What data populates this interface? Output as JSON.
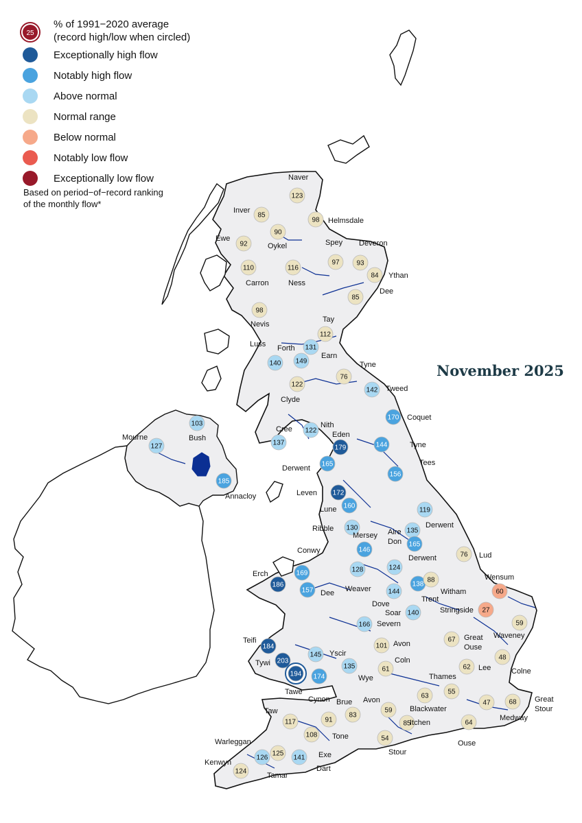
{
  "title": "November 2025",
  "legend": {
    "circled_header_line1": "% of 1991−2020 average",
    "circled_header_line2": "(record high/low when circled)",
    "sample_value": "25",
    "categories": [
      {
        "label": "Exceptionally high flow",
        "color": "#1f5a99"
      },
      {
        "label": "Notably high flow",
        "color": "#4aa3df"
      },
      {
        "label": "Above normal",
        "color": "#a9d8f2"
      },
      {
        "label": "Normal range",
        "color": "#ece3c2"
      },
      {
        "label": "Below normal",
        "color": "#f6a98a"
      },
      {
        "label": "Notably low flow",
        "color": "#ea5b50"
      },
      {
        "label": "Exceptionally low flow",
        "color": "#98192a"
      }
    ],
    "note_line1": "Based on period−of−record ranking",
    "note_line2": "of the monthly flow*"
  },
  "stations": [
    {
      "name": "Naver",
      "value": "123",
      "category": 3
    },
    {
      "name": "Inver",
      "value": "85",
      "category": 3
    },
    {
      "name": "Helmsdale",
      "value": "98",
      "category": 3
    },
    {
      "name": "Oykel",
      "value": "90",
      "category": 3
    },
    {
      "name": "Ewe",
      "value": "92",
      "category": 3
    },
    {
      "name": "Spey",
      "value": "97",
      "category": 3
    },
    {
      "name": "Deveron",
      "value": "93",
      "category": 3
    },
    {
      "name": "Carron",
      "value": "110",
      "category": 3
    },
    {
      "name": "Ness",
      "value": "116",
      "category": 3
    },
    {
      "name": "Ythan",
      "value": "84",
      "category": 3
    },
    {
      "name": "Dee",
      "value": "85",
      "category": 3
    },
    {
      "name": "Nevis",
      "value": "98",
      "category": 3
    },
    {
      "name": "Tay",
      "value": "112",
      "category": 3
    },
    {
      "name": "Forth",
      "value": "131",
      "category": 2
    },
    {
      "name": "Earn",
      "value": "149",
      "category": 2
    },
    {
      "name": "Luss",
      "value": "140",
      "category": 2
    },
    {
      "name": "Tyne",
      "value": "76",
      "category": 3
    },
    {
      "name": "Tweed",
      "value": "142",
      "category": 2
    },
    {
      "name": "Clyde",
      "value": "122",
      "category": 3
    },
    {
      "name": "Coquet",
      "value": "170",
      "category": 1
    },
    {
      "name": "Bush",
      "value": "103",
      "category": 2
    },
    {
      "name": "Mourne",
      "value": "127",
      "category": 2
    },
    {
      "name": "Cree",
      "value": "137",
      "category": 2
    },
    {
      "name": "Nith",
      "value": "122",
      "category": 2
    },
    {
      "name": "Eden",
      "value": "179",
      "category": 0
    },
    {
      "name": "Tyne",
      "value": "144",
      "category": 1
    },
    {
      "name": "Derwent",
      "value": "165",
      "category": 1
    },
    {
      "name": "Tees",
      "value": "156",
      "category": 1
    },
    {
      "name": "Annacloy",
      "value": "185",
      "category": 1
    },
    {
      "name": "Leven",
      "value": "172",
      "category": 0
    },
    {
      "name": "Lune",
      "value": "160",
      "category": 1
    },
    {
      "name": "Derwent",
      "value": "119",
      "category": 2
    },
    {
      "name": "Ribble",
      "value": "130",
      "category": 2
    },
    {
      "name": "Aire",
      "value": "135",
      "category": 2
    },
    {
      "name": "Don",
      "value": "165",
      "category": 1
    },
    {
      "name": "Lud",
      "value": "76",
      "category": 3
    },
    {
      "name": "Mersey",
      "value": "146",
      "category": 1
    },
    {
      "name": "Conwy",
      "value": "169",
      "category": 1
    },
    {
      "name": "Weaver",
      "value": "128",
      "category": 2
    },
    {
      "name": "Derwent",
      "value": "124",
      "category": 2
    },
    {
      "name": "Wensum",
      "value": "60",
      "category": 4
    },
    {
      "name": "Erch",
      "value": "186",
      "category": 0
    },
    {
      "name": "Dee",
      "value": "157",
      "category": 1
    },
    {
      "name": "Trent",
      "value": "138",
      "category": 1
    },
    {
      "name": "Witham",
      "value": "88",
      "category": 3
    },
    {
      "name": "Dove",
      "value": "144",
      "category": 2
    },
    {
      "name": "Soar",
      "value": "140",
      "category": 2
    },
    {
      "name": "Stringside",
      "value": "27",
      "category": 4
    },
    {
      "name": "Severn",
      "value": "166",
      "category": 2
    },
    {
      "name": "Waveney",
      "value": "59",
      "category": 3
    },
    {
      "name": "Teifi",
      "value": "184",
      "category": 0
    },
    {
      "name": "Avon",
      "value": "101",
      "category": 3
    },
    {
      "name": "Great Ouse",
      "value": "67",
      "category": 3
    },
    {
      "name": "Yscir",
      "value": "145",
      "category": 2
    },
    {
      "name": "Tywi",
      "value": "203",
      "category": 0
    },
    {
      "name": "Wye",
      "value": "135",
      "category": 2
    },
    {
      "name": "Coln",
      "value": "61",
      "category": 3
    },
    {
      "name": "Lee",
      "value": "62",
      "category": 3
    },
    {
      "name": "Colne",
      "value": "48",
      "category": 3
    },
    {
      "name": "Tawe",
      "value": "194",
      "category": 0,
      "record": true
    },
    {
      "name": "Cynon",
      "value": "174",
      "category": 1
    },
    {
      "name": "Thames",
      "value": "55",
      "category": 3
    },
    {
      "name": "Great Stour",
      "value": "68",
      "category": 3
    },
    {
      "name": "Medway",
      "value": "47",
      "category": 3
    },
    {
      "name": "Blackwater",
      "value": "63",
      "category": 3
    },
    {
      "name": "Avon",
      "value": "59",
      "category": 3
    },
    {
      "name": "Brue",
      "value": "83",
      "category": 3
    },
    {
      "name": "Taw",
      "value": "117",
      "category": 3
    },
    {
      "name": "Itchen",
      "value": "85",
      "category": 3
    },
    {
      "name": "Ouse",
      "value": "64",
      "category": 3
    },
    {
      "name": "Tone",
      "value": "91",
      "category": 3
    },
    {
      "name": "Exe",
      "value": "108",
      "category": 3
    },
    {
      "name": "Stour",
      "value": "54",
      "category": 3
    },
    {
      "name": "Warleggan",
      "value": "126",
      "category": 2
    },
    {
      "name": "Dart",
      "value": "125",
      "category": 3
    },
    {
      "name": "Tamar",
      "value": "141",
      "category": 2
    },
    {
      "name": "Kenwyn",
      "value": "124",
      "category": 3
    }
  ]
}
